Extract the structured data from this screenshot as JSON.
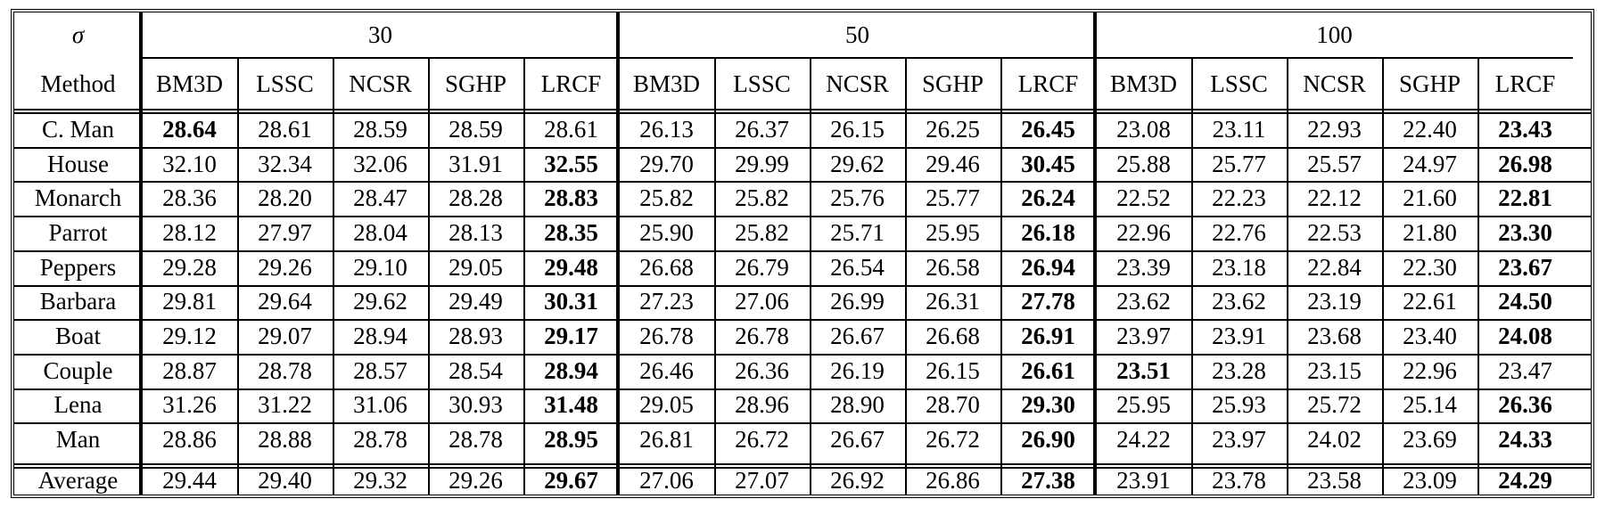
{
  "header": {
    "sigma_label": "σ",
    "method_label": "Method",
    "noise_levels": [
      "30",
      "50",
      "100"
    ],
    "methods": [
      "BM3D",
      "LSSC",
      "NCSR",
      "SGHP",
      "LRCF"
    ]
  },
  "rows": [
    {
      "image": "C. Man",
      "values": [
        "28.64",
        "28.61",
        "28.59",
        "28.59",
        "28.61",
        "26.13",
        "26.37",
        "26.15",
        "26.25",
        "26.45",
        "23.08",
        "23.11",
        "22.93",
        "22.40",
        "23.43"
      ],
      "bold": [
        0,
        9,
        14
      ]
    },
    {
      "image": "House",
      "values": [
        "32.10",
        "32.34",
        "32.06",
        "31.91",
        "32.55",
        "29.70",
        "29.99",
        "29.62",
        "29.46",
        "30.45",
        "25.88",
        "25.77",
        "25.57",
        "24.97",
        "26.98"
      ],
      "bold": [
        4,
        9,
        14
      ]
    },
    {
      "image": "Monarch",
      "values": [
        "28.36",
        "28.20",
        "28.47",
        "28.28",
        "28.83",
        "25.82",
        "25.82",
        "25.76",
        "25.77",
        "26.24",
        "22.52",
        "22.23",
        "22.12",
        "21.60",
        "22.81"
      ],
      "bold": [
        4,
        9,
        14
      ]
    },
    {
      "image": "Parrot",
      "values": [
        "28.12",
        "27.97",
        "28.04",
        "28.13",
        "28.35",
        "25.90",
        "25.82",
        "25.71",
        "25.95",
        "26.18",
        "22.96",
        "22.76",
        "22.53",
        "21.80",
        "23.30"
      ],
      "bold": [
        4,
        9,
        14
      ]
    },
    {
      "image": "Peppers",
      "values": [
        "29.28",
        "29.26",
        "29.10",
        "29.05",
        "29.48",
        "26.68",
        "26.79",
        "26.54",
        "26.58",
        "26.94",
        "23.39",
        "23.18",
        "22.84",
        "22.30",
        "23.67"
      ],
      "bold": [
        4,
        9,
        14
      ]
    },
    {
      "image": "Barbara",
      "values": [
        "29.81",
        "29.64",
        "29.62",
        "29.49",
        "30.31",
        "27.23",
        "27.06",
        "26.99",
        "26.31",
        "27.78",
        "23.62",
        "23.62",
        "23.19",
        "22.61",
        "24.50"
      ],
      "bold": [
        4,
        9,
        14
      ]
    },
    {
      "image": "Boat",
      "values": [
        "29.12",
        "29.07",
        "28.94",
        "28.93",
        "29.17",
        "26.78",
        "26.78",
        "26.67",
        "26.68",
        "26.91",
        "23.97",
        "23.91",
        "23.68",
        "23.40",
        "24.08"
      ],
      "bold": [
        4,
        9,
        14
      ]
    },
    {
      "image": "Couple",
      "values": [
        "28.87",
        "28.78",
        "28.57",
        "28.54",
        "28.94",
        "26.46",
        "26.36",
        "26.19",
        "26.15",
        "26.61",
        "23.51",
        "23.28",
        "23.15",
        "22.96",
        "23.47"
      ],
      "bold": [
        4,
        9,
        10
      ]
    },
    {
      "image": "Lena",
      "values": [
        "31.26",
        "31.22",
        "31.06",
        "30.93",
        "31.48",
        "29.05",
        "28.96",
        "28.90",
        "28.70",
        "29.30",
        "25.95",
        "25.93",
        "25.72",
        "25.14",
        "26.36"
      ],
      "bold": [
        4,
        9,
        14
      ]
    },
    {
      "image": "Man",
      "values": [
        "28.86",
        "28.88",
        "28.78",
        "28.78",
        "28.95",
        "26.81",
        "26.72",
        "26.67",
        "26.72",
        "26.90",
        "24.22",
        "23.97",
        "24.02",
        "23.69",
        "24.33"
      ],
      "bold": [
        4,
        9,
        14
      ]
    }
  ],
  "average": {
    "image": "Average",
    "values": [
      "29.44",
      "29.40",
      "29.32",
      "29.26",
      "29.67",
      "27.06",
      "27.07",
      "26.92",
      "26.86",
      "27.38",
      "23.91",
      "23.78",
      "23.58",
      "23.09",
      "24.29"
    ],
    "bold": [
      4,
      9,
      14
    ]
  }
}
